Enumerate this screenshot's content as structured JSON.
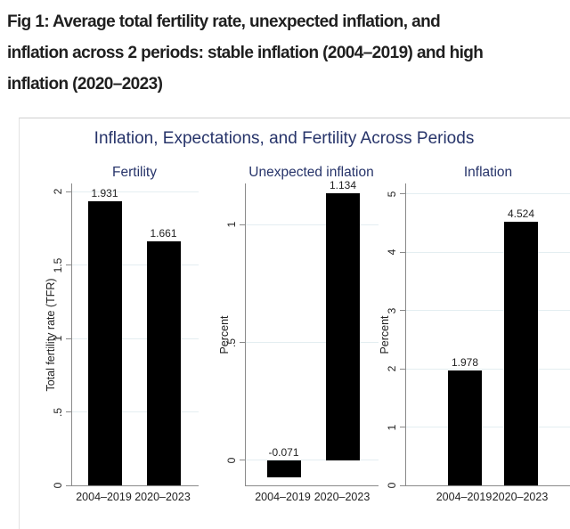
{
  "caption": {
    "lines": [
      "Fig 1: Average total fertility rate, unexpected inflation, and",
      "inflation across 2 periods: stable inflation (2004–2019) and high",
      "inflation (2020–2023)"
    ]
  },
  "chart_data": {
    "type": "bar",
    "title": "Inflation, Expectations, and Fertility Across Periods",
    "categories": [
      "2004–2019",
      "2020–2023"
    ],
    "grid": true,
    "legend": false,
    "panels": [
      {
        "title": "Fertility",
        "ylabel": "Total fertility rate (TFR)",
        "values": [
          1.931,
          1.661
        ],
        "value_labels": [
          "1.931",
          "1.661"
        ],
        "tick_values": [
          0,
          0.5,
          1,
          1.5,
          2
        ],
        "tick_labels": [
          "0",
          ".5",
          "1",
          "1.5",
          "2"
        ],
        "ylim": [
          0,
          2.055
        ]
      },
      {
        "title": "Unexpected inflation",
        "ylabel": "Percent",
        "values": [
          -0.071,
          1.134
        ],
        "value_labels": [
          "-0.071",
          "1.134"
        ],
        "tick_values": [
          0,
          0.5,
          1
        ],
        "tick_labels": [
          "0",
          ".5",
          "1"
        ],
        "ylim": [
          -0.106,
          1.174
        ]
      },
      {
        "title": "Inflation",
        "ylabel": "Percent",
        "values": [
          1.978,
          4.524
        ],
        "value_labels": [
          "1.978",
          "4.524"
        ],
        "tick_values": [
          0,
          1,
          2,
          3,
          4,
          5
        ],
        "tick_labels": [
          "0",
          "1",
          "2",
          "3",
          "4",
          "5"
        ],
        "ylim": [
          0,
          5.183
        ]
      }
    ],
    "colors": {
      "bar": "#000000",
      "title_navy": "#27346a",
      "gridline": "#e4eef1",
      "axis": "#8a8a8a",
      "text": "#222222"
    }
  }
}
